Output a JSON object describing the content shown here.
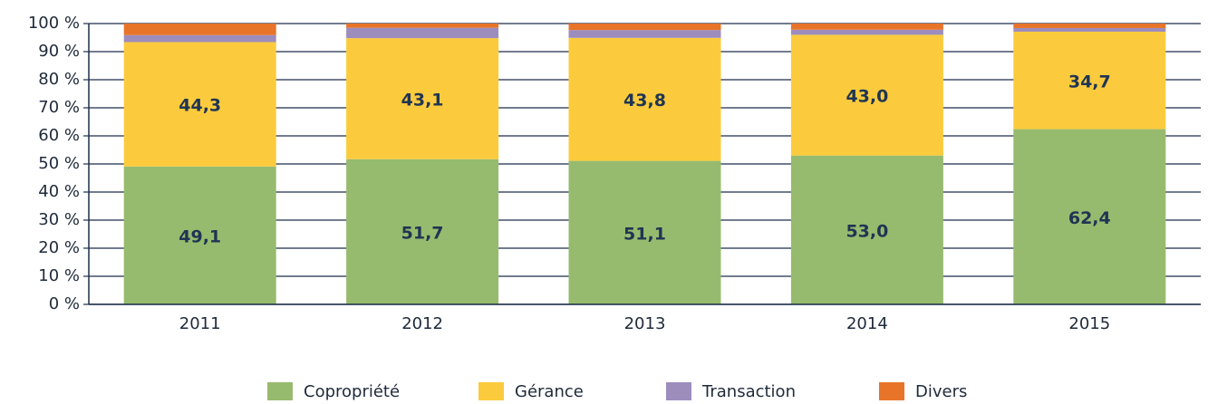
{
  "chart_data": {
    "type": "stacked_bar",
    "categories": [
      "2011",
      "2012",
      "2013",
      "2014",
      "2015"
    ],
    "series": [
      {
        "name": "Copropriété",
        "color": "#97bb6e",
        "values": [
          49.1,
          51.7,
          51.1,
          53.0,
          62.4
        ],
        "value_labels": [
          "49,1",
          "51,7",
          "51,1",
          "53,0",
          "62,4"
        ]
      },
      {
        "name": "Gérance",
        "color": "#fccb3d",
        "values": [
          44.3,
          43.1,
          43.8,
          43.0,
          34.7
        ],
        "value_labels": [
          "44,3",
          "43,1",
          "43,8",
          "43,0",
          "34,7"
        ]
      },
      {
        "name": "Transaction",
        "color": "#9d8dbd",
        "values": [
          2.5,
          3.7,
          2.8,
          1.8,
          1.3
        ]
      },
      {
        "name": "Divers",
        "color": "#e8742a",
        "values": [
          4.1,
          1.5,
          2.3,
          2.2,
          1.6
        ]
      }
    ],
    "ylim": [
      0,
      100
    ],
    "yticks": [
      {
        "value": 0,
        "label": "0 %"
      },
      {
        "value": 10,
        "label": "10 %"
      },
      {
        "value": 20,
        "label": "20 %"
      },
      {
        "value": 30,
        "label": "30 %"
      },
      {
        "value": 40,
        "label": "40 %"
      },
      {
        "value": 50,
        "label": "50 %"
      },
      {
        "value": 60,
        "label": "60 %"
      },
      {
        "value": 70,
        "label": "70 %"
      },
      {
        "value": 80,
        "label": "80 %"
      },
      {
        "value": 90,
        "label": "90 %"
      },
      {
        "value": 100,
        "label": "100 %"
      }
    ],
    "grid": true,
    "legend": "bottom"
  }
}
